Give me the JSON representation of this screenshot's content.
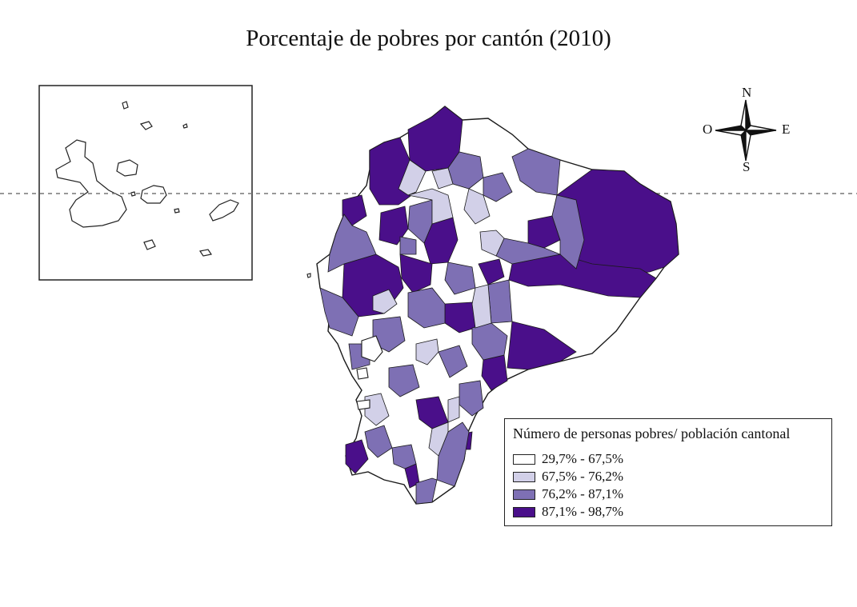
{
  "title": "Porcentaje de pobres por cantón (2010)",
  "compass": {
    "north": "N",
    "south": "S",
    "east": "E",
    "west": "O"
  },
  "legend": {
    "title": "Número de personas pobres/ población cantonal",
    "items": [
      {
        "label": "29,7% - 67,5%",
        "color": "#ffffff"
      },
      {
        "label": "67,5% - 76,2%",
        "color": "#d2d0e8"
      },
      {
        "label": "76,2% - 87,1%",
        "color": "#7e70b4"
      },
      {
        "label": "87,1% - 98,7%",
        "color": "#4a0f8a"
      }
    ]
  },
  "colors": {
    "class1": "#ffffff",
    "class2": "#d2d0e8",
    "class3": "#7e70b4",
    "class4": "#4a0f8a",
    "outline": "#1a1a1a",
    "equator": "#777777"
  }
}
